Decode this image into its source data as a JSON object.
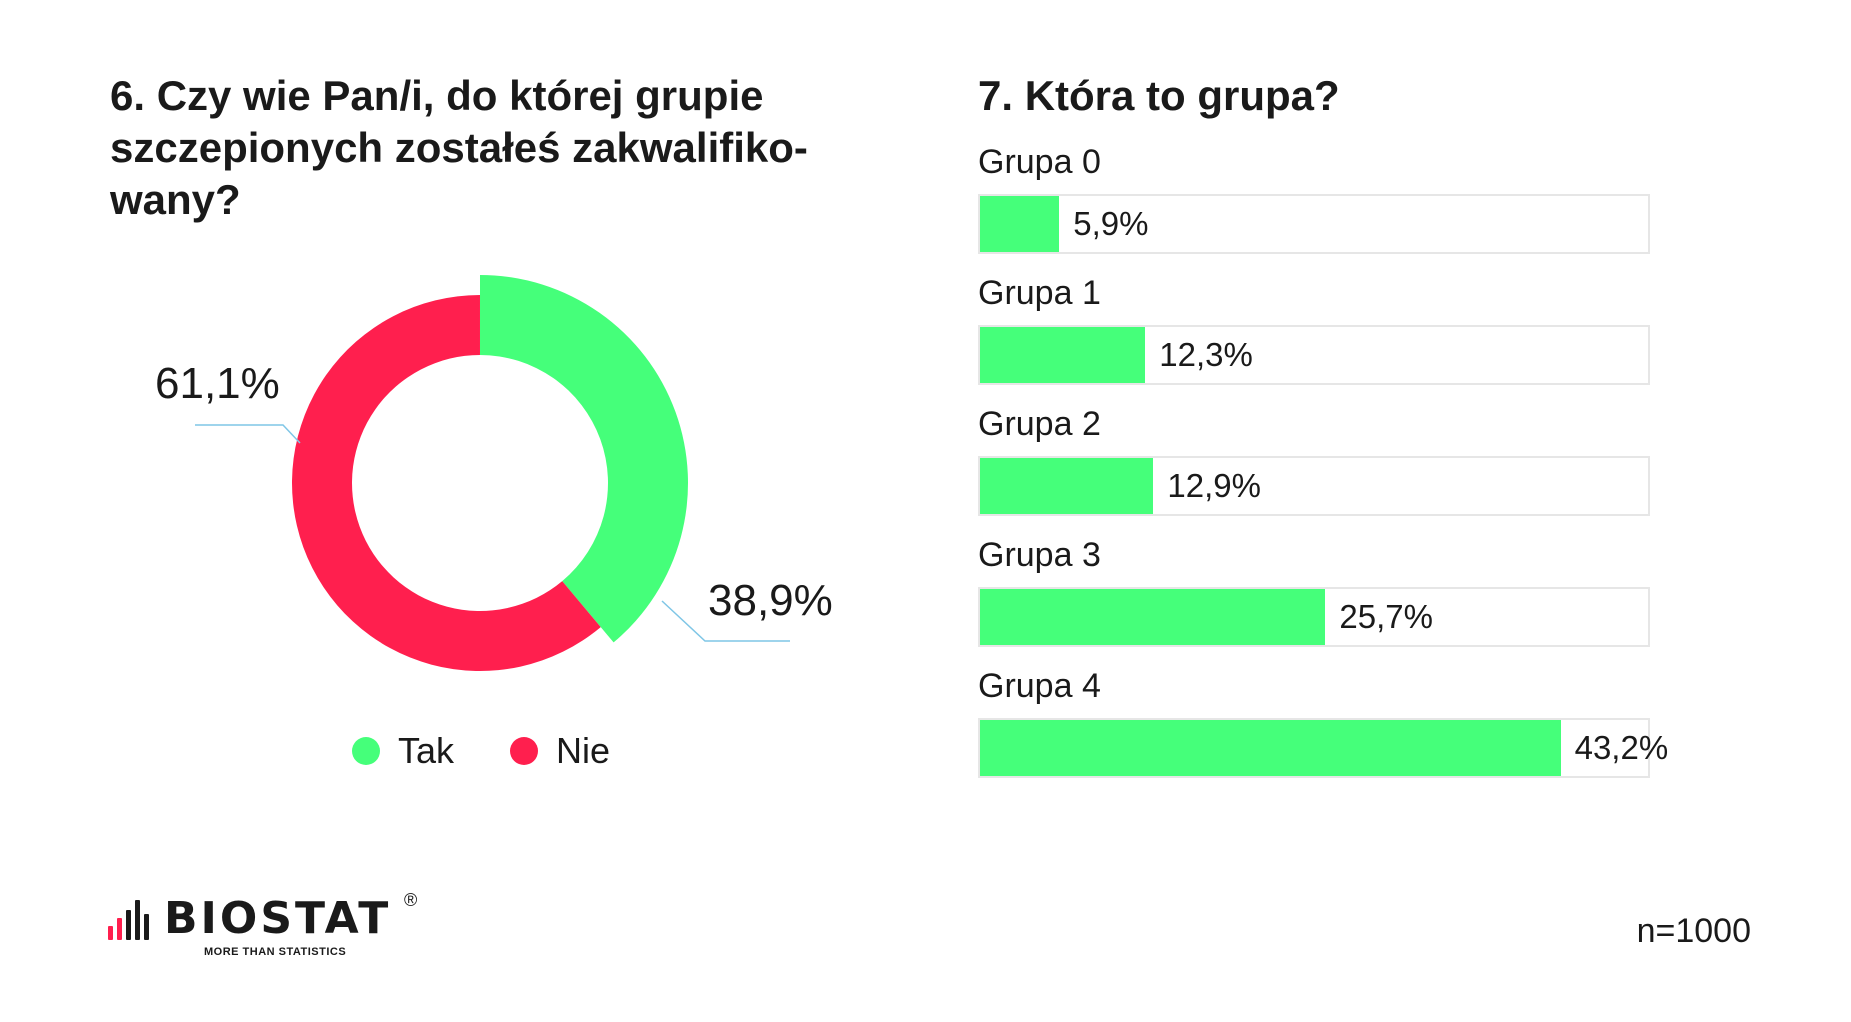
{
  "titles": {
    "q6": "6.    Czy wie Pan/i, do której grupie szczepionych zostałeś zakwalifiko-wany?",
    "q7": "7. Która to grupa?"
  },
  "colors": {
    "green": "#45ff7a",
    "red": "#ff1f4e",
    "track_border": "#e6e6e6",
    "leader_line": "#7fc6e6"
  },
  "chart_data": [
    {
      "type": "pie",
      "variant": "donut",
      "labels": [
        "Tak",
        "Nie"
      ],
      "values": [
        38.9,
        61.1
      ],
      "value_labels": [
        "38,9%",
        "61,1%"
      ],
      "colors": [
        "#45ff7a",
        "#ff1f4e"
      ],
      "legend": {
        "placement": "bottom",
        "entries": [
          "Tak",
          "Nie"
        ]
      }
    },
    {
      "type": "bar",
      "orientation": "horizontal",
      "categories": [
        "Grupa 0",
        "Grupa 1",
        "Grupa 2",
        "Grupa 3",
        "Grupa 4"
      ],
      "values": [
        5.9,
        12.3,
        12.9,
        25.7,
        43.2
      ],
      "value_labels": [
        "5,9%",
        "12,3%",
        "12,9%",
        "25,7%",
        "43,2%"
      ],
      "xlim": [
        0,
        50
      ],
      "color": "#45ff7a"
    }
  ],
  "footer": {
    "logo_word": "BIOSTAT",
    "logo_reg": "®",
    "logo_tagline": "MORE THAN STATISTICS",
    "sample": "n=1000"
  }
}
